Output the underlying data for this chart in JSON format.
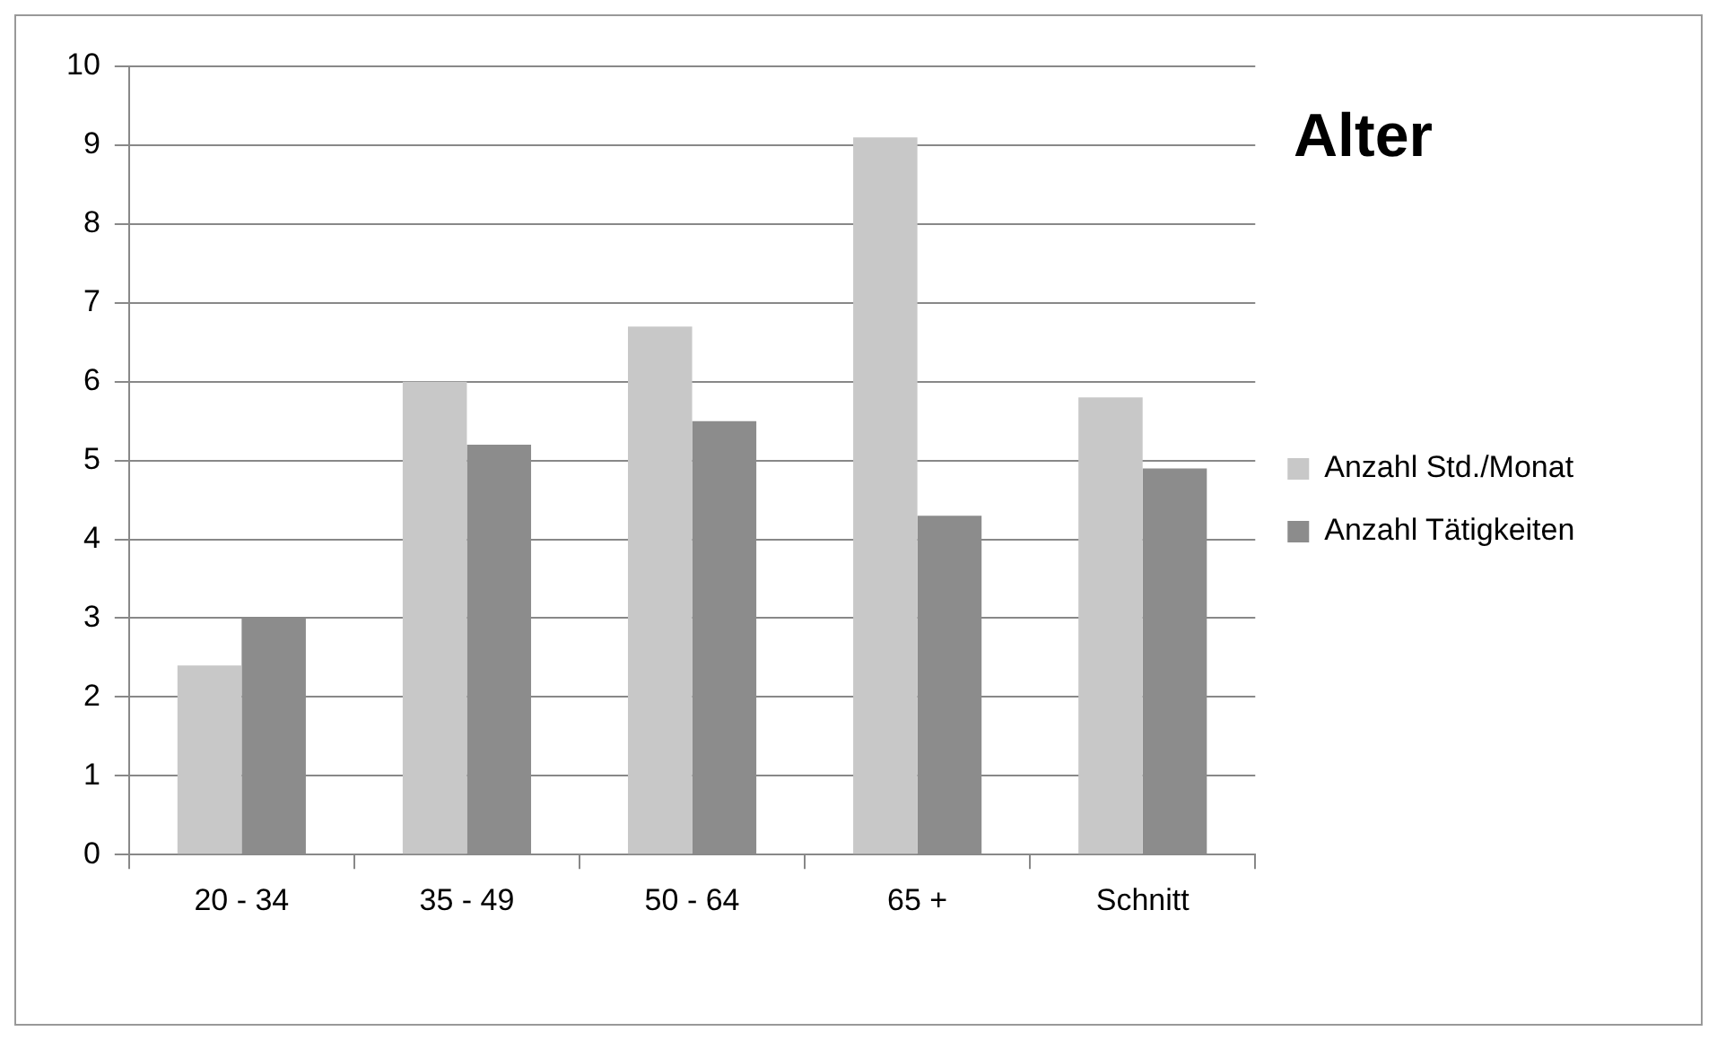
{
  "chart_data": {
    "type": "bar",
    "title": "Alter",
    "categories": [
      "20 - 34",
      "35 - 49",
      "50 - 64",
      "65 +",
      "Schnitt"
    ],
    "series": [
      {
        "name": "Anzahl Std./Monat",
        "color": "#c8c8c8",
        "values": [
          2.4,
          6.0,
          6.7,
          9.1,
          5.8
        ]
      },
      {
        "name": "Anzahl Tätigkeiten",
        "color": "#8c8c8c",
        "values": [
          3.0,
          5.2,
          5.5,
          4.3,
          4.9
        ]
      }
    ],
    "ylim": [
      0,
      10
    ],
    "yticks": [
      0,
      1,
      2,
      3,
      4,
      5,
      6,
      7,
      8,
      9,
      10
    ],
    "grid": "y",
    "legend": "right"
  }
}
